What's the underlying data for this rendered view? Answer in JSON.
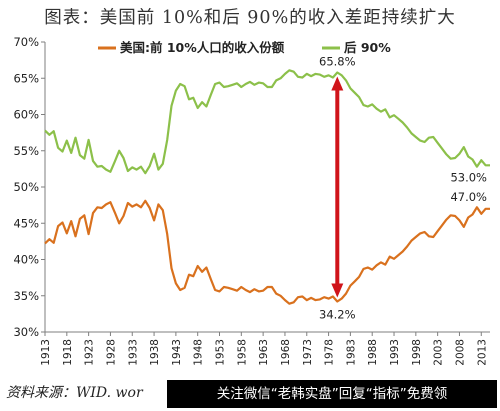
{
  "title": "图表：美国前 10%和后 90%的收入差距持续扩大",
  "source_text": "资料来源：WID. wor",
  "banner_text": "关注微信“老韩实盘”回复“指标”免费领",
  "colors": {
    "top10": "#D9711E",
    "bottom90": "#8CC04A",
    "arrow": "#D0141A"
  },
  "chart_data": {
    "type": "line",
    "title": "图表：美国前 10%和后 90%的收入差距持续扩大",
    "xlabel": "",
    "ylabel": "",
    "xlim": [
      1913,
      2015
    ],
    "ylim": [
      30,
      70
    ],
    "y_ticks": [
      "30%",
      "35%",
      "40%",
      "45%",
      "50%",
      "55%",
      "60%",
      "65%",
      "70%"
    ],
    "x_ticks": [
      "1913",
      "1918",
      "1923",
      "1928",
      "1933",
      "1938",
      "1943",
      "1948",
      "1953",
      "1958",
      "1963",
      "1968",
      "1973",
      "1978",
      "1983",
      "1988",
      "1993",
      "1998",
      "2003",
      "2008",
      "2013"
    ],
    "grid": false,
    "legend_position": "top",
    "series": [
      {
        "name": "美国:前 10%人口的收入份额",
        "color": "#D9711E",
        "points": [
          [
            1913,
            42.2
          ],
          [
            1914,
            42.8
          ],
          [
            1915,
            42.3
          ],
          [
            1916,
            44.6
          ],
          [
            1917,
            45.1
          ],
          [
            1918,
            43.6
          ],
          [
            1919,
            45.3
          ],
          [
            1920,
            43.2
          ],
          [
            1921,
            45.6
          ],
          [
            1922,
            46.1
          ],
          [
            1923,
            43.5
          ],
          [
            1924,
            46.4
          ],
          [
            1925,
            47.2
          ],
          [
            1926,
            47.1
          ],
          [
            1927,
            47.6
          ],
          [
            1928,
            47.9
          ],
          [
            1929,
            46.5
          ],
          [
            1930,
            45.0
          ],
          [
            1931,
            46.0
          ],
          [
            1932,
            47.8
          ],
          [
            1933,
            47.3
          ],
          [
            1934,
            47.6
          ],
          [
            1935,
            47.2
          ],
          [
            1936,
            48.1
          ],
          [
            1937,
            47.1
          ],
          [
            1938,
            45.4
          ],
          [
            1939,
            47.6
          ],
          [
            1940,
            46.8
          ],
          [
            1941,
            43.5
          ],
          [
            1942,
            38.8
          ],
          [
            1943,
            36.7
          ],
          [
            1944,
            35.8
          ],
          [
            1945,
            36.1
          ],
          [
            1946,
            37.9
          ],
          [
            1947,
            37.7
          ],
          [
            1948,
            39.1
          ],
          [
            1949,
            38.3
          ],
          [
            1950,
            38.9
          ],
          [
            1951,
            37.3
          ],
          [
            1952,
            35.8
          ],
          [
            1953,
            35.6
          ],
          [
            1954,
            36.2
          ],
          [
            1955,
            36.1
          ],
          [
            1956,
            35.9
          ],
          [
            1957,
            35.7
          ],
          [
            1958,
            36.2
          ],
          [
            1959,
            35.8
          ],
          [
            1960,
            35.5
          ],
          [
            1961,
            35.9
          ],
          [
            1962,
            35.6
          ],
          [
            1963,
            35.7
          ],
          [
            1964,
            36.2
          ],
          [
            1965,
            36.2
          ],
          [
            1966,
            35.3
          ],
          [
            1967,
            35.0
          ],
          [
            1968,
            34.4
          ],
          [
            1969,
            33.9
          ],
          [
            1970,
            34.1
          ],
          [
            1971,
            34.8
          ],
          [
            1972,
            34.9
          ],
          [
            1973,
            34.4
          ],
          [
            1974,
            34.7
          ],
          [
            1975,
            34.4
          ],
          [
            1976,
            34.5
          ],
          [
            1977,
            34.8
          ],
          [
            1978,
            34.6
          ],
          [
            1979,
            34.9
          ],
          [
            1980,
            34.2
          ],
          [
            1981,
            34.6
          ],
          [
            1982,
            35.3
          ],
          [
            1983,
            36.4
          ],
          [
            1984,
            37.0
          ],
          [
            1985,
            37.6
          ],
          [
            1986,
            38.7
          ],
          [
            1987,
            38.9
          ],
          [
            1988,
            38.6
          ],
          [
            1989,
            39.2
          ],
          [
            1990,
            39.6
          ],
          [
            1991,
            39.3
          ],
          [
            1992,
            40.4
          ],
          [
            1993,
            40.1
          ],
          [
            1994,
            40.6
          ],
          [
            1995,
            41.1
          ],
          [
            1996,
            41.8
          ],
          [
            1997,
            42.6
          ],
          [
            1998,
            43.1
          ],
          [
            1999,
            43.6
          ],
          [
            2000,
            43.8
          ],
          [
            2001,
            43.2
          ],
          [
            2002,
            43.1
          ],
          [
            2003,
            43.9
          ],
          [
            2004,
            44.7
          ],
          [
            2005,
            45.5
          ],
          [
            2006,
            46.1
          ],
          [
            2007,
            46.0
          ],
          [
            2008,
            45.4
          ],
          [
            2009,
            44.5
          ],
          [
            2010,
            45.8
          ],
          [
            2011,
            46.2
          ],
          [
            2012,
            47.2
          ],
          [
            2013,
            46.3
          ],
          [
            2014,
            47.0
          ],
          [
            2015,
            47.0
          ]
        ]
      },
      {
        "name": "后 90%",
        "color": "#8CC04A",
        "points": [
          [
            1913,
            57.8
          ],
          [
            1914,
            57.2
          ],
          [
            1915,
            57.7
          ],
          [
            1916,
            55.4
          ],
          [
            1917,
            54.9
          ],
          [
            1918,
            56.4
          ],
          [
            1919,
            54.7
          ],
          [
            1920,
            56.8
          ],
          [
            1921,
            54.4
          ],
          [
            1922,
            53.9
          ],
          [
            1923,
            56.5
          ],
          [
            1924,
            53.6
          ],
          [
            1925,
            52.8
          ],
          [
            1926,
            52.9
          ],
          [
            1927,
            52.4
          ],
          [
            1928,
            52.1
          ],
          [
            1929,
            53.5
          ],
          [
            1930,
            55.0
          ],
          [
            1931,
            54.0
          ],
          [
            1932,
            52.2
          ],
          [
            1933,
            52.7
          ],
          [
            1934,
            52.4
          ],
          [
            1935,
            52.8
          ],
          [
            1936,
            51.9
          ],
          [
            1937,
            52.9
          ],
          [
            1938,
            54.6
          ],
          [
            1939,
            52.4
          ],
          [
            1940,
            53.2
          ],
          [
            1941,
            56.5
          ],
          [
            1942,
            61.2
          ],
          [
            1943,
            63.3
          ],
          [
            1944,
            64.2
          ],
          [
            1945,
            63.9
          ],
          [
            1946,
            62.1
          ],
          [
            1947,
            62.3
          ],
          [
            1948,
            60.9
          ],
          [
            1949,
            61.7
          ],
          [
            1950,
            61.1
          ],
          [
            1951,
            62.7
          ],
          [
            1952,
            64.2
          ],
          [
            1953,
            64.4
          ],
          [
            1954,
            63.8
          ],
          [
            1955,
            63.9
          ],
          [
            1956,
            64.1
          ],
          [
            1957,
            64.3
          ],
          [
            1958,
            63.8
          ],
          [
            1959,
            64.2
          ],
          [
            1960,
            64.5
          ],
          [
            1961,
            64.1
          ],
          [
            1962,
            64.4
          ],
          [
            1963,
            64.3
          ],
          [
            1964,
            63.8
          ],
          [
            1965,
            63.8
          ],
          [
            1966,
            64.7
          ],
          [
            1967,
            65.0
          ],
          [
            1968,
            65.6
          ],
          [
            1969,
            66.1
          ],
          [
            1970,
            65.9
          ],
          [
            1971,
            65.2
          ],
          [
            1972,
            65.1
          ],
          [
            1973,
            65.6
          ],
          [
            1974,
            65.3
          ],
          [
            1975,
            65.6
          ],
          [
            1976,
            65.5
          ],
          [
            1977,
            65.2
          ],
          [
            1978,
            65.4
          ],
          [
            1979,
            65.1
          ],
          [
            1980,
            65.8
          ],
          [
            1981,
            65.4
          ],
          [
            1982,
            64.7
          ],
          [
            1983,
            63.6
          ],
          [
            1984,
            63.0
          ],
          [
            1985,
            62.4
          ],
          [
            1986,
            61.3
          ],
          [
            1987,
            61.1
          ],
          [
            1988,
            61.4
          ],
          [
            1989,
            60.8
          ],
          [
            1990,
            60.4
          ],
          [
            1991,
            60.7
          ],
          [
            1992,
            59.6
          ],
          [
            1993,
            59.9
          ],
          [
            1994,
            59.4
          ],
          [
            1995,
            58.9
          ],
          [
            1996,
            58.2
          ],
          [
            1997,
            57.4
          ],
          [
            1998,
            56.9
          ],
          [
            1999,
            56.4
          ],
          [
            2000,
            56.2
          ],
          [
            2001,
            56.8
          ],
          [
            2002,
            56.9
          ],
          [
            2003,
            56.1
          ],
          [
            2004,
            55.3
          ],
          [
            2005,
            54.5
          ],
          [
            2006,
            53.9
          ],
          [
            2007,
            54.0
          ],
          [
            2008,
            54.6
          ],
          [
            2009,
            55.5
          ],
          [
            2010,
            54.2
          ],
          [
            2011,
            53.8
          ],
          [
            2012,
            52.8
          ],
          [
            2013,
            53.7
          ],
          [
            2014,
            53.0
          ],
          [
            2015,
            53.0
          ]
        ]
      }
    ],
    "annotations": [
      {
        "text": "65.8%",
        "x": 1980,
        "y": 65.8
      },
      {
        "text": "34.2%",
        "x": 1980,
        "y": 34.2
      },
      {
        "text": "53.0%",
        "x": 2013,
        "y": 53.0
      },
      {
        "text": "47.0%",
        "x": 2013,
        "y": 47.0
      }
    ],
    "arrow": {
      "x": 1980,
      "y_from": 34.2,
      "y_to": 65.8
    }
  }
}
